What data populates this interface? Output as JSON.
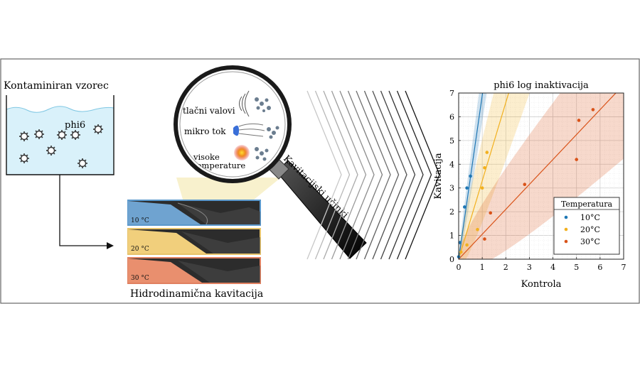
{
  "sample": {
    "title": "Kontaminiran vzorec",
    "virus_label": "phi6"
  },
  "cavitation": {
    "caption": "Hidrodinamična kavitacija",
    "panels": [
      {
        "label": "10 °C",
        "color": "#6fa3d0"
      },
      {
        "label": "20 °C",
        "color": "#f1cf7c"
      },
      {
        "label": "30 °C",
        "color": "#e98f6e"
      }
    ]
  },
  "magnifier": {
    "handle_label": "Kavitacijski učinki",
    "effects": [
      {
        "label": "tlačni valovi",
        "icon": "pressure-waves-icon"
      },
      {
        "label": "mikro tok",
        "icon": "micro-jet-icon"
      },
      {
        "label_line1": "visoke",
        "label_line2": "temperature",
        "icon": "heat-icon"
      }
    ]
  },
  "chart_data": {
    "type": "scatter",
    "title": "phi6 log inaktivacija",
    "xlabel": "Kontrola",
    "ylabel": "Kavitacija",
    "xlim": [
      0,
      7
    ],
    "ylim": [
      0,
      7
    ],
    "xticks": [
      "0",
      "1",
      "2",
      "3",
      "4",
      "5",
      "6",
      "7"
    ],
    "yticks": [
      "0",
      "1",
      "2",
      "3",
      "4",
      "5",
      "6",
      "7"
    ],
    "grid": true,
    "legend_title": "Temperatura",
    "legend_position": "lower-right",
    "series": [
      {
        "name": "10°C",
        "color": "#1f77b4",
        "points": [
          [
            0.0,
            0.1
          ],
          [
            0.05,
            0.7
          ],
          [
            0.25,
            2.2
          ],
          [
            0.35,
            3.0
          ],
          [
            0.5,
            3.5
          ]
        ],
        "fit_slope": 6.9,
        "band": 0.6
      },
      {
        "name": "20°C",
        "color": "#f2b01e",
        "points": [
          [
            0.1,
            0.3
          ],
          [
            0.35,
            0.6
          ],
          [
            0.8,
            1.25
          ],
          [
            1.0,
            3.0
          ],
          [
            1.1,
            3.85
          ],
          [
            1.2,
            4.5
          ]
        ],
        "fit_slope": 3.3,
        "band": 1.0
      },
      {
        "name": "30°C",
        "color": "#d95319",
        "points": [
          [
            1.1,
            0.85
          ],
          [
            1.35,
            1.95
          ],
          [
            2.8,
            3.15
          ],
          [
            5.0,
            4.2
          ],
          [
            5.1,
            5.85
          ],
          [
            5.7,
            6.3
          ]
        ],
        "fit_slope": 1.05,
        "band": 0.7
      }
    ]
  }
}
